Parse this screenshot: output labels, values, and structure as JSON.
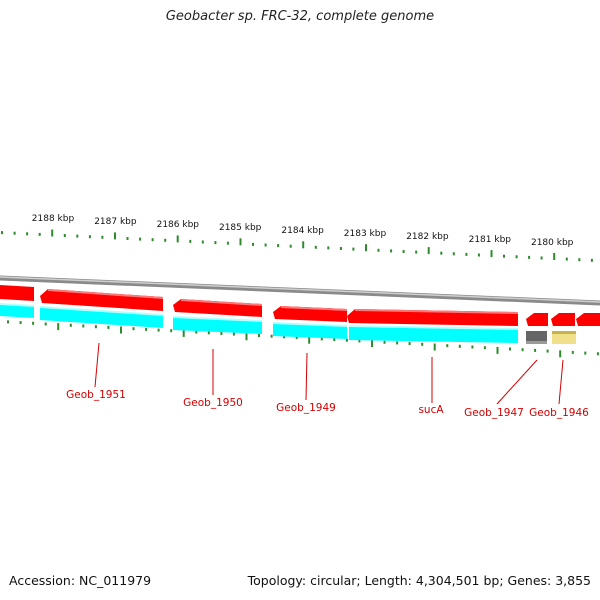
{
  "title": "Geobacter sp. FRC-32, complete genome",
  "footer": {
    "accession": "Accession: NC_011979",
    "summary": "Topology: circular; Length: 4,304,501 bp; Genes: 3,855"
  },
  "colors": {
    "forward_cds": "#ff0000",
    "cds_shadow": "#99ffff",
    "cds_aqua": "#00ffff",
    "backbone": "#8a8a8a",
    "tick": "#2e8b2e",
    "label": "#d40000",
    "trna": "#666666",
    "misc": "#f0e08a"
  },
  "scale_labels": [
    "2188 kbp",
    "2187 kbp",
    "2186 kbp",
    "2185 kbp",
    "2184 kbp",
    "2183 kbp",
    "2182 kbp",
    "2181 kbp",
    "2180 kbp"
  ],
  "gene_labels": [
    "Geob_1951",
    "Geob_1950",
    "Geob_1949",
    "sucA",
    "Geob_1947",
    "Geob_1946"
  ]
}
